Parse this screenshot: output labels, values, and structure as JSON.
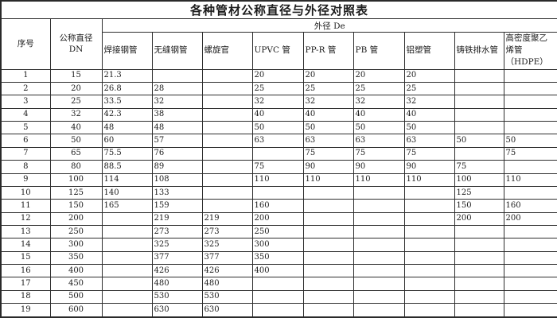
{
  "title": "各种管材公称直径与外径对照表",
  "table": {
    "serial_header": "序号",
    "dn_header": "公称直径 DN",
    "outer_diameter_header": "外径 De",
    "pipe_headers": [
      "焊接钢管",
      "无缝钢管",
      "螺旋官",
      "UPVC 管",
      "PP-R 管",
      "PB 管",
      "铝塑管",
      "铸铁排水管",
      "高密度聚乙烯管（HDPE）"
    ],
    "rows": [
      [
        "1",
        "15",
        "21.3",
        "",
        "",
        "20",
        "20",
        "20",
        "20",
        "",
        ""
      ],
      [
        "2",
        "20",
        "26.8",
        "28",
        "",
        "25",
        "25",
        "25",
        "25",
        "",
        ""
      ],
      [
        "3",
        "25",
        "33.5",
        "32",
        "",
        "32",
        "32",
        "32",
        "32",
        "",
        ""
      ],
      [
        "4",
        "32",
        "42.3",
        "38",
        "",
        "40",
        "40",
        "40",
        "40",
        "",
        ""
      ],
      [
        "5",
        "40",
        "48",
        "48",
        "",
        "50",
        "50",
        "50",
        "50",
        "",
        ""
      ],
      [
        "6",
        "50",
        "60",
        "57",
        "",
        "63",
        "63",
        "63",
        "63",
        "50",
        "50"
      ],
      [
        "7",
        "65",
        "75.5",
        "76",
        "",
        "",
        "75",
        "75",
        "75",
        "",
        "75"
      ],
      [
        "8",
        "80",
        "88.5",
        "89",
        "",
        "75",
        "90",
        "90",
        "90",
        "75",
        ""
      ],
      [
        "9",
        "100",
        "114",
        "108",
        "",
        "110",
        "110",
        "110",
        "110",
        "100",
        "110"
      ],
      [
        "10",
        "125",
        "140",
        "133",
        "",
        "",
        "",
        "",
        "",
        "125",
        ""
      ],
      [
        "11",
        "150",
        "165",
        "159",
        "",
        "160",
        "",
        "",
        "",
        "150",
        "160"
      ],
      [
        "12",
        "200",
        "",
        "219",
        "219",
        "200",
        "",
        "",
        "",
        "200",
        "200"
      ],
      [
        "13",
        "250",
        "",
        "273",
        "273",
        "250",
        "",
        "",
        "",
        "",
        ""
      ],
      [
        "14",
        "300",
        "",
        "325",
        "325",
        "300",
        "",
        "",
        "",
        "",
        ""
      ],
      [
        "15",
        "350",
        "",
        "377",
        "377",
        "350",
        "",
        "",
        "",
        "",
        ""
      ],
      [
        "16",
        "400",
        "",
        "426",
        "426",
        "400",
        "",
        "",
        "",
        "",
        ""
      ],
      [
        "17",
        "450",
        "",
        "480",
        "480",
        "",
        "",
        "",
        "",
        "",
        ""
      ],
      [
        "18",
        "500",
        "",
        "530",
        "530",
        "",
        "",
        "",
        "",
        "",
        ""
      ],
      [
        "19",
        "600",
        "",
        "630",
        "630",
        "",
        "",
        "",
        "",
        "",
        ""
      ]
    ],
    "colors": {
      "border": "#2e2e2e",
      "text": "#1c1c1c",
      "background": "#ffffff"
    }
  }
}
